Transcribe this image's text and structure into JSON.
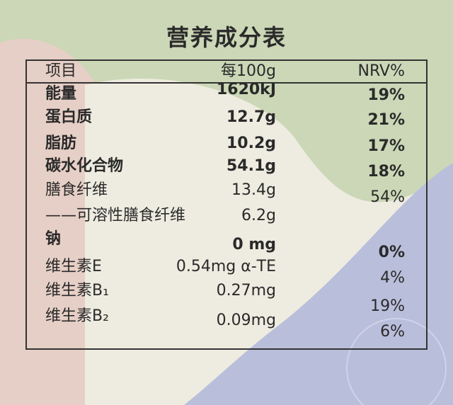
{
  "title": "营养成分表",
  "table": {
    "headers": [
      "项目",
      "每100g",
      "NRV%"
    ],
    "rows": [
      [
        "能量",
        "1620kJ",
        "19%"
      ],
      [
        "蛋白质",
        "12.7g",
        "21%"
      ],
      [
        "脂肪",
        "10.2g",
        "17%"
      ],
      [
        "碳水化合物",
        "54.1g",
        "18%"
      ],
      [
        "膳食纤维",
        "13.4g",
        "54%"
      ],
      [
        "——可溶性膳食纤维",
        "6.2g"
      ],
      [
        "钠",
        "0 mg",
        "0%"
      ],
      [
        "维生素E",
        "0.54mg α-TE",
        "4%"
      ],
      [
        "维生素B₁",
        "0.27mg",
        "19%"
      ],
      [
        "维生素B₂",
        "0.09mg",
        "6%"
      ]
    ]
  }
}
